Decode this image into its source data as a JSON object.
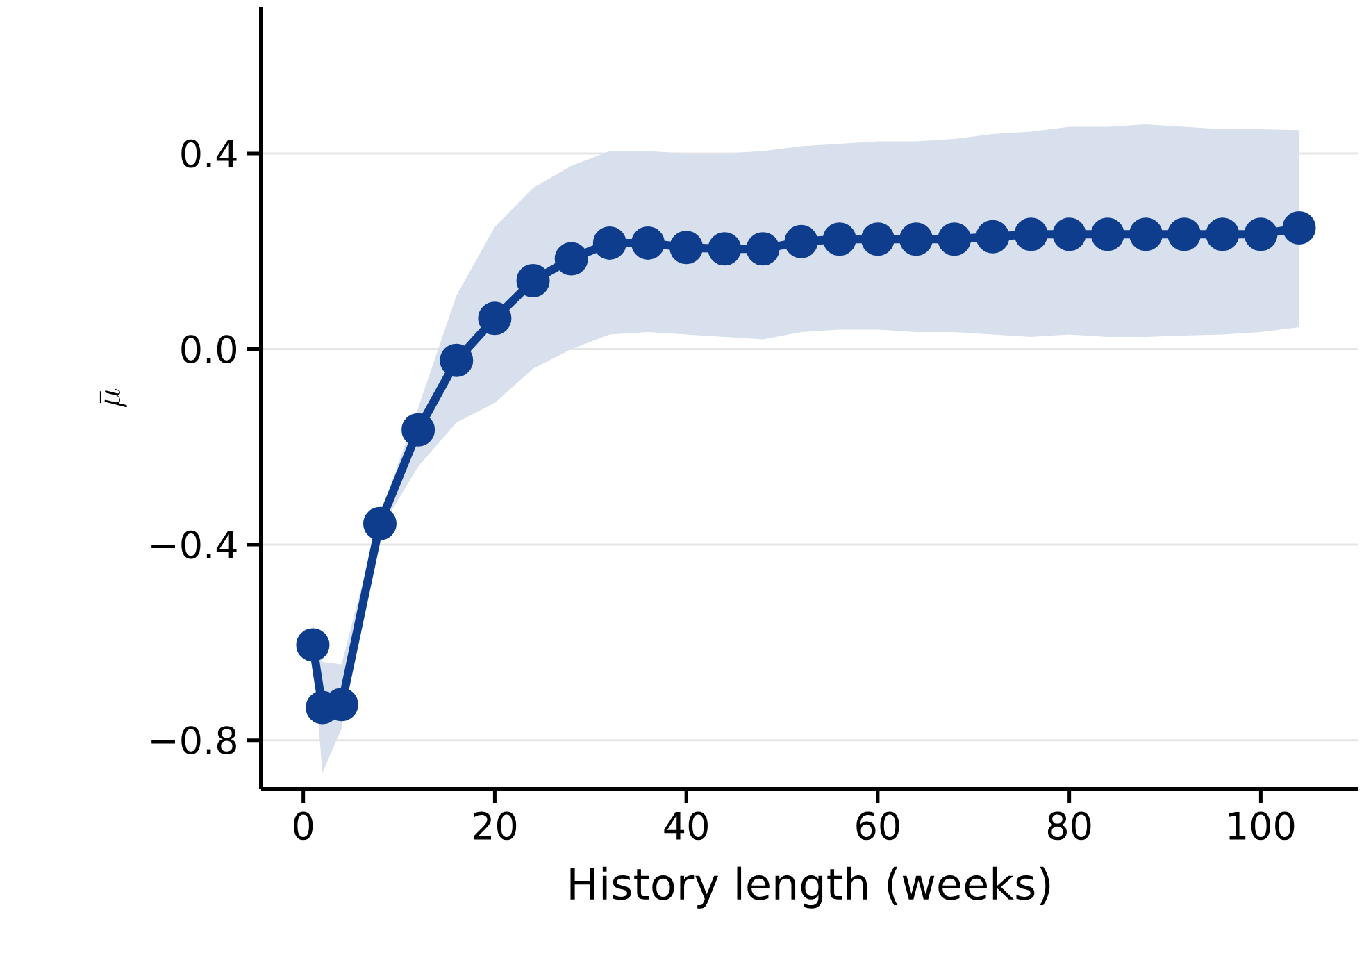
{
  "chart_data": {
    "type": "line",
    "xlabel": "History length (weeks)",
    "ylabel": "\\bar{\\mu}",
    "x": [
      1,
      2,
      4,
      8,
      12,
      16,
      20,
      24,
      28,
      32,
      36,
      40,
      44,
      48,
      52,
      56,
      60,
      64,
      68,
      72,
      76,
      80,
      84,
      88,
      92,
      96,
      100,
      104
    ],
    "series": [
      {
        "color": "#0e3d8e",
        "values": [
          -0.605,
          -0.733,
          -0.727,
          -0.357,
          -0.165,
          -0.023,
          0.063,
          0.14,
          0.185,
          0.217,
          0.217,
          0.208,
          0.205,
          0.205,
          0.22,
          0.225,
          0.225,
          0.225,
          0.225,
          0.23,
          0.235,
          0.235,
          0.235,
          0.235,
          0.235,
          0.235,
          0.235,
          0.248
        ],
        "lower": [
          -0.62,
          -0.867,
          -0.776,
          -0.37,
          -0.24,
          -0.15,
          -0.11,
          -0.04,
          0.0,
          0.03,
          0.035,
          0.03,
          0.025,
          0.02,
          0.035,
          0.04,
          0.04,
          0.035,
          0.035,
          0.03,
          0.025,
          0.03,
          0.025,
          0.025,
          0.028,
          0.03,
          0.035,
          0.045
        ],
        "upper": [
          -0.56,
          -0.64,
          -0.645,
          -0.34,
          -0.12,
          0.11,
          0.25,
          0.33,
          0.375,
          0.405,
          0.405,
          0.4,
          0.4,
          0.405,
          0.415,
          0.42,
          0.425,
          0.425,
          0.43,
          0.44,
          0.445,
          0.455,
          0.455,
          0.46,
          0.455,
          0.45,
          0.45,
          0.448
        ]
      }
    ],
    "xlim": [
      -4.4,
      110.2
    ],
    "ylim": [
      -0.9,
      0.7
    ],
    "xticks": [
      0,
      20,
      40,
      60,
      80,
      100
    ],
    "yticks": [
      {
        "value": -0.8,
        "label": "−0.8"
      },
      {
        "value": -0.4,
        "label": "−0.4"
      },
      {
        "value": 0,
        "label": "0.0"
      },
      0.4
    ],
    "grid": "y",
    "marker": "circle",
    "line_style": "solid"
  }
}
